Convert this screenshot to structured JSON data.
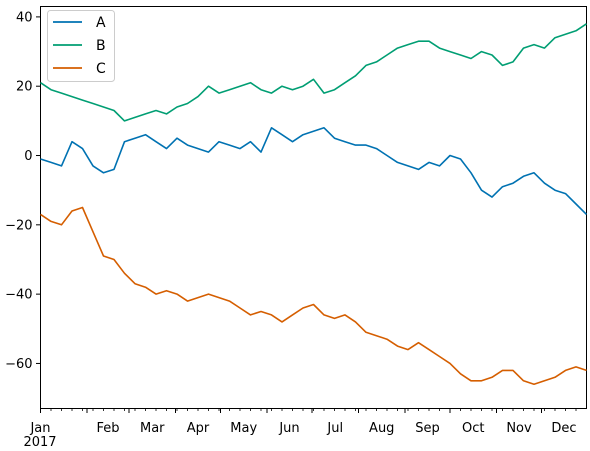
{
  "chart_data": {
    "type": "line",
    "title": "",
    "xlabel": "",
    "ylabel": "",
    "x_tick_labels": [
      "Jan",
      "Feb",
      "Mar",
      "Apr",
      "May",
      "Jun",
      "Jul",
      "Aug",
      "Sep",
      "Oct",
      "Nov",
      "Dec"
    ],
    "x_year_label": "2017",
    "x_range": [
      "2017-01-01",
      "2017-12-31"
    ],
    "ylim": [
      -73,
      43
    ],
    "y_ticks": [
      40,
      20,
      0,
      -20,
      -40,
      -60
    ],
    "y_tick_labels": [
      "40",
      "20",
      "0",
      "−20",
      "−40",
      "−60"
    ],
    "grid": false,
    "legend_position": "top-left",
    "series": [
      {
        "name": "A",
        "color": "#0072b2",
        "x": [
          "2017-01-01",
          "2017-01-08",
          "2017-01-15",
          "2017-01-22",
          "2017-01-29",
          "2017-02-05",
          "2017-02-12",
          "2017-02-19",
          "2017-02-26",
          "2017-03-05",
          "2017-03-12",
          "2017-03-19",
          "2017-03-26",
          "2017-04-02",
          "2017-04-09",
          "2017-04-16",
          "2017-04-23",
          "2017-04-30",
          "2017-05-07",
          "2017-05-14",
          "2017-05-21",
          "2017-05-28",
          "2017-06-04",
          "2017-06-11",
          "2017-06-18",
          "2017-06-25",
          "2017-07-02",
          "2017-07-09",
          "2017-07-16",
          "2017-07-23",
          "2017-07-30",
          "2017-08-06",
          "2017-08-13",
          "2017-08-20",
          "2017-08-27",
          "2017-09-03",
          "2017-09-10",
          "2017-09-17",
          "2017-09-24",
          "2017-10-01",
          "2017-10-08",
          "2017-10-15",
          "2017-10-22",
          "2017-10-29",
          "2017-11-05",
          "2017-11-12",
          "2017-11-19",
          "2017-11-26",
          "2017-12-03",
          "2017-12-10",
          "2017-12-17",
          "2017-12-24",
          "2017-12-31"
        ],
        "y": [
          -1,
          -2,
          -3,
          4,
          2,
          -3,
          -5,
          -4,
          4,
          5,
          6,
          4,
          2,
          5,
          3,
          2,
          1,
          4,
          3,
          2,
          4,
          1,
          8,
          6,
          4,
          6,
          7,
          8,
          5,
          4,
          3,
          3,
          2,
          0,
          -2,
          -3,
          -4,
          -2,
          -3,
          0,
          -1,
          -5,
          -10,
          -12,
          -9,
          -8,
          -6,
          -5,
          -8,
          -10,
          -11,
          -14,
          -17
        ]
      },
      {
        "name": "B",
        "color": "#009e73",
        "x": [
          "2017-01-01",
          "2017-01-08",
          "2017-01-15",
          "2017-01-22",
          "2017-01-29",
          "2017-02-05",
          "2017-02-12",
          "2017-02-19",
          "2017-02-26",
          "2017-03-05",
          "2017-03-12",
          "2017-03-19",
          "2017-03-26",
          "2017-04-02",
          "2017-04-09",
          "2017-04-16",
          "2017-04-23",
          "2017-04-30",
          "2017-05-07",
          "2017-05-14",
          "2017-05-21",
          "2017-05-28",
          "2017-06-04",
          "2017-06-11",
          "2017-06-18",
          "2017-06-25",
          "2017-07-02",
          "2017-07-09",
          "2017-07-16",
          "2017-07-23",
          "2017-07-30",
          "2017-08-06",
          "2017-08-13",
          "2017-08-20",
          "2017-08-27",
          "2017-09-03",
          "2017-09-10",
          "2017-09-17",
          "2017-09-24",
          "2017-10-01",
          "2017-10-08",
          "2017-10-15",
          "2017-10-22",
          "2017-10-29",
          "2017-11-05",
          "2017-11-12",
          "2017-11-19",
          "2017-11-26",
          "2017-12-03",
          "2017-12-10",
          "2017-12-17",
          "2017-12-24",
          "2017-12-31"
        ],
        "y": [
          21,
          19,
          18,
          17,
          16,
          15,
          14,
          13,
          10,
          11,
          12,
          13,
          12,
          14,
          15,
          17,
          20,
          18,
          19,
          20,
          21,
          19,
          18,
          20,
          19,
          20,
          22,
          18,
          19,
          21,
          23,
          26,
          27,
          29,
          31,
          32,
          33,
          33,
          31,
          30,
          29,
          28,
          30,
          29,
          26,
          27,
          31,
          32,
          31,
          34,
          35,
          36,
          38
        ]
      },
      {
        "name": "C",
        "color": "#d55e00",
        "x": [
          "2017-01-01",
          "2017-01-08",
          "2017-01-15",
          "2017-01-22",
          "2017-01-29",
          "2017-02-05",
          "2017-02-12",
          "2017-02-19",
          "2017-02-26",
          "2017-03-05",
          "2017-03-12",
          "2017-03-19",
          "2017-03-26",
          "2017-04-02",
          "2017-04-09",
          "2017-04-16",
          "2017-04-23",
          "2017-04-30",
          "2017-05-07",
          "2017-05-14",
          "2017-05-21",
          "2017-05-28",
          "2017-06-04",
          "2017-06-11",
          "2017-06-18",
          "2017-06-25",
          "2017-07-02",
          "2017-07-09",
          "2017-07-16",
          "2017-07-23",
          "2017-07-30",
          "2017-08-06",
          "2017-08-13",
          "2017-08-20",
          "2017-08-27",
          "2017-09-03",
          "2017-09-10",
          "2017-09-17",
          "2017-09-24",
          "2017-10-01",
          "2017-10-08",
          "2017-10-15",
          "2017-10-22",
          "2017-10-29",
          "2017-11-05",
          "2017-11-12",
          "2017-11-19",
          "2017-11-26",
          "2017-12-03",
          "2017-12-10",
          "2017-12-17",
          "2017-12-24",
          "2017-12-31"
        ],
        "y": [
          -17,
          -19,
          -20,
          -16,
          -15,
          -22,
          -29,
          -30,
          -34,
          -37,
          -38,
          -40,
          -39,
          -40,
          -42,
          -41,
          -40,
          -41,
          -42,
          -44,
          -46,
          -45,
          -46,
          -48,
          -46,
          -44,
          -43,
          -46,
          -47,
          -46,
          -48,
          -51,
          -52,
          -53,
          -55,
          -56,
          -54,
          -56,
          -58,
          -60,
          -63,
          -65,
          -65,
          -64,
          -62,
          -62,
          -65,
          -66,
          -65,
          -64,
          -62,
          -61,
          -62
        ]
      }
    ]
  }
}
